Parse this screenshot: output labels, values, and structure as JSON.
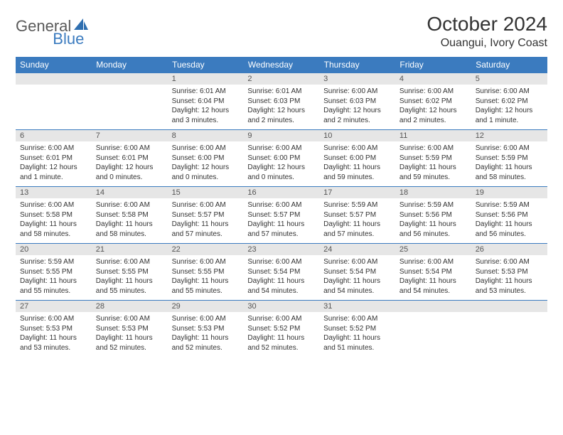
{
  "logo": {
    "part1": "General",
    "part2": "Blue"
  },
  "title": "October 2024",
  "location": "Ouangui, Ivory Coast",
  "colors": {
    "header_bg": "#3b7bbf",
    "header_fg": "#ffffff",
    "daynum_bg": "#e6e6e6",
    "daynum_fg": "#555555",
    "text": "#333333",
    "rule": "#3b7bbf",
    "page_bg": "#ffffff"
  },
  "weekdays": [
    "Sunday",
    "Monday",
    "Tuesday",
    "Wednesday",
    "Thursday",
    "Friday",
    "Saturday"
  ],
  "weeks": [
    [
      {
        "n": "",
        "l": [
          "",
          "",
          ""
        ]
      },
      {
        "n": "",
        "l": [
          "",
          "",
          ""
        ]
      },
      {
        "n": "1",
        "l": [
          "Sunrise: 6:01 AM",
          "Sunset: 6:04 PM",
          "Daylight: 12 hours and 3 minutes."
        ]
      },
      {
        "n": "2",
        "l": [
          "Sunrise: 6:01 AM",
          "Sunset: 6:03 PM",
          "Daylight: 12 hours and 2 minutes."
        ]
      },
      {
        "n": "3",
        "l": [
          "Sunrise: 6:00 AM",
          "Sunset: 6:03 PM",
          "Daylight: 12 hours and 2 minutes."
        ]
      },
      {
        "n": "4",
        "l": [
          "Sunrise: 6:00 AM",
          "Sunset: 6:02 PM",
          "Daylight: 12 hours and 2 minutes."
        ]
      },
      {
        "n": "5",
        "l": [
          "Sunrise: 6:00 AM",
          "Sunset: 6:02 PM",
          "Daylight: 12 hours and 1 minute."
        ]
      }
    ],
    [
      {
        "n": "6",
        "l": [
          "Sunrise: 6:00 AM",
          "Sunset: 6:01 PM",
          "Daylight: 12 hours and 1 minute."
        ]
      },
      {
        "n": "7",
        "l": [
          "Sunrise: 6:00 AM",
          "Sunset: 6:01 PM",
          "Daylight: 12 hours and 0 minutes."
        ]
      },
      {
        "n": "8",
        "l": [
          "Sunrise: 6:00 AM",
          "Sunset: 6:00 PM",
          "Daylight: 12 hours and 0 minutes."
        ]
      },
      {
        "n": "9",
        "l": [
          "Sunrise: 6:00 AM",
          "Sunset: 6:00 PM",
          "Daylight: 12 hours and 0 minutes."
        ]
      },
      {
        "n": "10",
        "l": [
          "Sunrise: 6:00 AM",
          "Sunset: 6:00 PM",
          "Daylight: 11 hours and 59 minutes."
        ]
      },
      {
        "n": "11",
        "l": [
          "Sunrise: 6:00 AM",
          "Sunset: 5:59 PM",
          "Daylight: 11 hours and 59 minutes."
        ]
      },
      {
        "n": "12",
        "l": [
          "Sunrise: 6:00 AM",
          "Sunset: 5:59 PM",
          "Daylight: 11 hours and 58 minutes."
        ]
      }
    ],
    [
      {
        "n": "13",
        "l": [
          "Sunrise: 6:00 AM",
          "Sunset: 5:58 PM",
          "Daylight: 11 hours and 58 minutes."
        ]
      },
      {
        "n": "14",
        "l": [
          "Sunrise: 6:00 AM",
          "Sunset: 5:58 PM",
          "Daylight: 11 hours and 58 minutes."
        ]
      },
      {
        "n": "15",
        "l": [
          "Sunrise: 6:00 AM",
          "Sunset: 5:57 PM",
          "Daylight: 11 hours and 57 minutes."
        ]
      },
      {
        "n": "16",
        "l": [
          "Sunrise: 6:00 AM",
          "Sunset: 5:57 PM",
          "Daylight: 11 hours and 57 minutes."
        ]
      },
      {
        "n": "17",
        "l": [
          "Sunrise: 5:59 AM",
          "Sunset: 5:57 PM",
          "Daylight: 11 hours and 57 minutes."
        ]
      },
      {
        "n": "18",
        "l": [
          "Sunrise: 5:59 AM",
          "Sunset: 5:56 PM",
          "Daylight: 11 hours and 56 minutes."
        ]
      },
      {
        "n": "19",
        "l": [
          "Sunrise: 5:59 AM",
          "Sunset: 5:56 PM",
          "Daylight: 11 hours and 56 minutes."
        ]
      }
    ],
    [
      {
        "n": "20",
        "l": [
          "Sunrise: 5:59 AM",
          "Sunset: 5:55 PM",
          "Daylight: 11 hours and 55 minutes."
        ]
      },
      {
        "n": "21",
        "l": [
          "Sunrise: 6:00 AM",
          "Sunset: 5:55 PM",
          "Daylight: 11 hours and 55 minutes."
        ]
      },
      {
        "n": "22",
        "l": [
          "Sunrise: 6:00 AM",
          "Sunset: 5:55 PM",
          "Daylight: 11 hours and 55 minutes."
        ]
      },
      {
        "n": "23",
        "l": [
          "Sunrise: 6:00 AM",
          "Sunset: 5:54 PM",
          "Daylight: 11 hours and 54 minutes."
        ]
      },
      {
        "n": "24",
        "l": [
          "Sunrise: 6:00 AM",
          "Sunset: 5:54 PM",
          "Daylight: 11 hours and 54 minutes."
        ]
      },
      {
        "n": "25",
        "l": [
          "Sunrise: 6:00 AM",
          "Sunset: 5:54 PM",
          "Daylight: 11 hours and 54 minutes."
        ]
      },
      {
        "n": "26",
        "l": [
          "Sunrise: 6:00 AM",
          "Sunset: 5:53 PM",
          "Daylight: 11 hours and 53 minutes."
        ]
      }
    ],
    [
      {
        "n": "27",
        "l": [
          "Sunrise: 6:00 AM",
          "Sunset: 5:53 PM",
          "Daylight: 11 hours and 53 minutes."
        ]
      },
      {
        "n": "28",
        "l": [
          "Sunrise: 6:00 AM",
          "Sunset: 5:53 PM",
          "Daylight: 11 hours and 52 minutes."
        ]
      },
      {
        "n": "29",
        "l": [
          "Sunrise: 6:00 AM",
          "Sunset: 5:53 PM",
          "Daylight: 11 hours and 52 minutes."
        ]
      },
      {
        "n": "30",
        "l": [
          "Sunrise: 6:00 AM",
          "Sunset: 5:52 PM",
          "Daylight: 11 hours and 52 minutes."
        ]
      },
      {
        "n": "31",
        "l": [
          "Sunrise: 6:00 AM",
          "Sunset: 5:52 PM",
          "Daylight: 11 hours and 51 minutes."
        ]
      },
      {
        "n": "",
        "l": [
          "",
          "",
          ""
        ]
      },
      {
        "n": "",
        "l": [
          "",
          "",
          ""
        ]
      }
    ]
  ]
}
